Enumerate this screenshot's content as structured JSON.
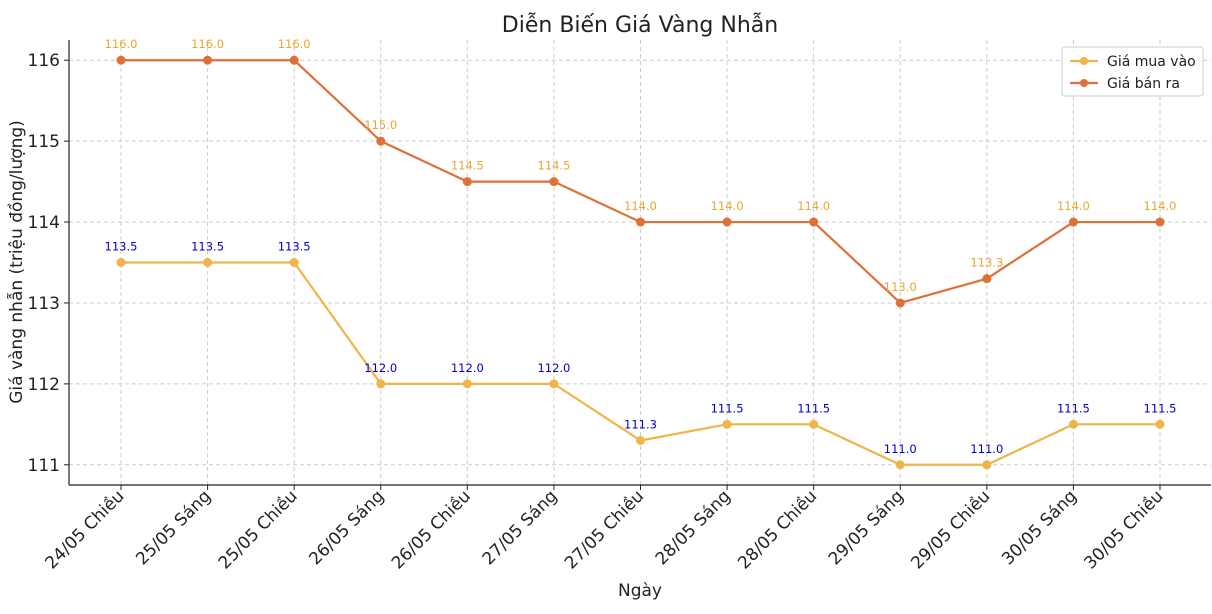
{
  "chart_data": {
    "type": "line",
    "title": "Diễn Biến Giá Vàng Nhẫn",
    "xlabel": "Ngày",
    "ylabel": "Giá vàng nhẫn (triệu đồng/lượng)",
    "categories": [
      "24/05 Chiều",
      "25/05 Sáng",
      "25/05 Chiều",
      "26/05 Sáng",
      "26/05 Chiều",
      "27/05 Sáng",
      "27/05 Chiều",
      "28/05 Sáng",
      "28/05 Chiều",
      "29/05 Sáng",
      "29/05 Chiều",
      "30/05 Sáng",
      "30/05 Chiều"
    ],
    "ylim": [
      110.75,
      116.25
    ],
    "yticks": [
      111,
      112,
      113,
      114,
      115,
      116
    ],
    "grid": true,
    "legend_position": "top-right",
    "series": [
      {
        "name": "Giá mua vào",
        "color": "#f0b44a",
        "label_color": "#0000cc",
        "values": [
          113.5,
          113.5,
          113.5,
          112.0,
          112.0,
          112.0,
          111.3,
          111.5,
          111.5,
          111.0,
          111.0,
          111.5,
          111.5
        ],
        "labels": [
          "113.5",
          "113.5",
          "113.5",
          "112.0",
          "112.0",
          "112.0",
          "111.3",
          "111.5",
          "111.5",
          "111.0",
          "111.0",
          "111.5",
          "111.5"
        ]
      },
      {
        "name": "Giá bán ra",
        "color": "#de7138",
        "label_color": "#e9a52e",
        "values": [
          116.0,
          116.0,
          116.0,
          115.0,
          114.5,
          114.5,
          114.0,
          114.0,
          114.0,
          113.0,
          113.3,
          114.0,
          114.0
        ],
        "labels": [
          "116.0",
          "116.0",
          "116.0",
          "115.0",
          "114.5",
          "114.5",
          "114.0",
          "114.0",
          "114.0",
          "113.0",
          "113.3",
          "114.0",
          "114.0"
        ]
      }
    ]
  }
}
